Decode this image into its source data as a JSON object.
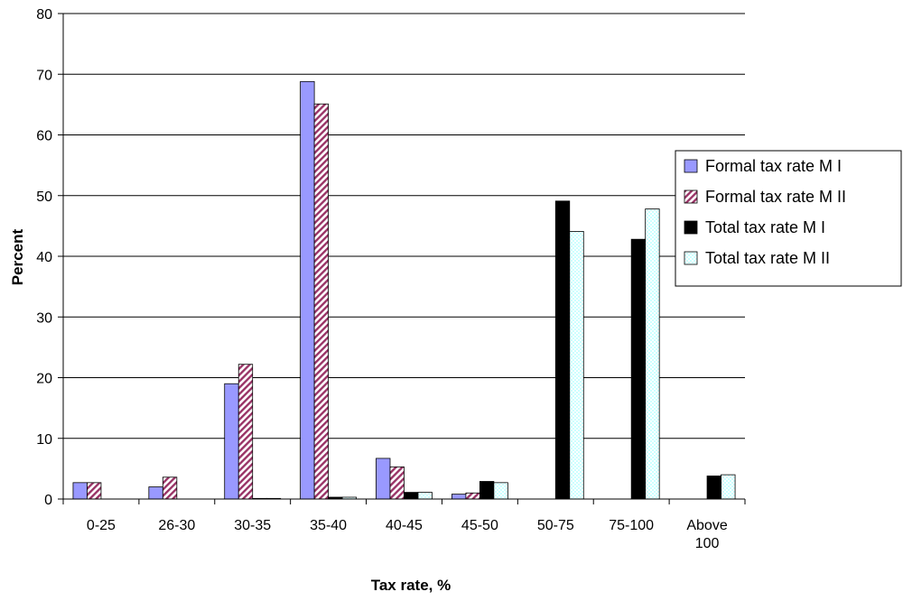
{
  "chart_data": {
    "type": "bar",
    "title": "",
    "xlabel": "Tax rate, %",
    "ylabel": "Percent",
    "ylim": [
      0,
      80
    ],
    "yticks": [
      0,
      10,
      20,
      30,
      40,
      50,
      60,
      70,
      80
    ],
    "grid": true,
    "legend_position": "right",
    "categories": [
      "0-25",
      "26-30",
      "30-35",
      "35-40",
      "40-45",
      "45-50",
      "50-75",
      "75-100",
      "Above 100"
    ],
    "series": [
      {
        "name": "Formal tax rate M I",
        "color": "#9999FF",
        "pattern": "solid",
        "values": [
          2.7,
          2.0,
          19.0,
          68.8,
          6.7,
          0.8,
          0,
          0,
          0
        ]
      },
      {
        "name": "Formal tax rate M II",
        "color": "#993366",
        "pattern": "diagonal-hatch",
        "values": [
          2.7,
          3.6,
          22.2,
          65.1,
          5.3,
          1.0,
          0,
          0,
          0
        ]
      },
      {
        "name": "Total tax rate M I",
        "color": "#000000",
        "pattern": "solid",
        "values": [
          0,
          0,
          0.1,
          0.3,
          1.1,
          2.9,
          49.1,
          42.8,
          3.8
        ]
      },
      {
        "name": "Total tax rate M II",
        "color": "#CCFFFF",
        "pattern": "dotted",
        "values": [
          0,
          0,
          0.1,
          0.3,
          1.1,
          2.7,
          44.1,
          47.8,
          4.0
        ]
      }
    ]
  }
}
